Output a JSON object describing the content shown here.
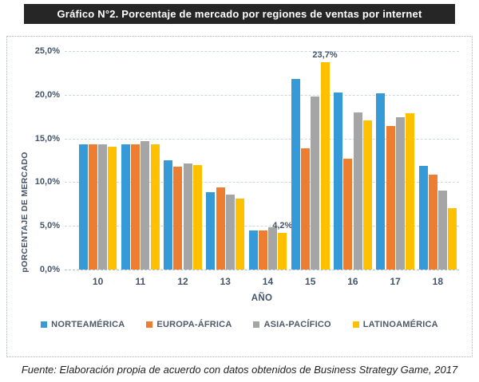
{
  "banner": {
    "title": "Gráfico N°2. Porcentaje de mercado por regiones de ventas por internet",
    "bg_color": "#262626",
    "text_color": "#FFFFFF"
  },
  "footer": {
    "source": "Fuente: Elaboración propia de acuerdo con datos obtenidos de Business Strategy Game, 2017"
  },
  "chart_data": {
    "type": "bar",
    "title": "Gráfico N°2. Porcentaje de mercado por regiones de ventas por internet",
    "xlabel": "AÑO",
    "ylabel": "pORCENTAJE DE MERCADO",
    "categories": [
      "10",
      "11",
      "12",
      "13",
      "14",
      "15",
      "16",
      "17",
      "18"
    ],
    "series": [
      {
        "name": "NORTEAMÉRICA",
        "color": "#3699D8",
        "values": [
          14.3,
          14.3,
          12.5,
          8.9,
          4.5,
          21.8,
          20.3,
          20.2,
          11.9
        ]
      },
      {
        "name": "EUROPA-ÁFRICA",
        "color": "#ED7D31",
        "values": [
          14.3,
          14.3,
          11.8,
          9.4,
          4.5,
          13.9,
          12.7,
          16.4,
          10.9
        ]
      },
      {
        "name": "ASIA-PACÍFICO",
        "color": "#A5A5A5",
        "values": [
          14.3,
          14.7,
          12.1,
          8.6,
          4.8,
          19.8,
          18.0,
          17.4,
          9.0
        ]
      },
      {
        "name": "LATINOAMÉRICA",
        "color": "#FFC000",
        "values": [
          14.1,
          14.3,
          12.0,
          8.1,
          4.2,
          23.7,
          17.1,
          17.9,
          7.0
        ],
        "data_labels": {
          "4": "4,2%",
          "5": "23,7%"
        }
      }
    ],
    "ylim": [
      0,
      25
    ],
    "ytick_step": 5,
    "yticks": [
      "0,0%",
      "5,0%",
      "10,0%",
      "15,0%",
      "20,0%",
      "25,0%"
    ],
    "grid": "horizontal-dashed",
    "legend_position": "bottom",
    "axis_text_color": "#44546A",
    "grid_color": "#C9D6E4"
  }
}
